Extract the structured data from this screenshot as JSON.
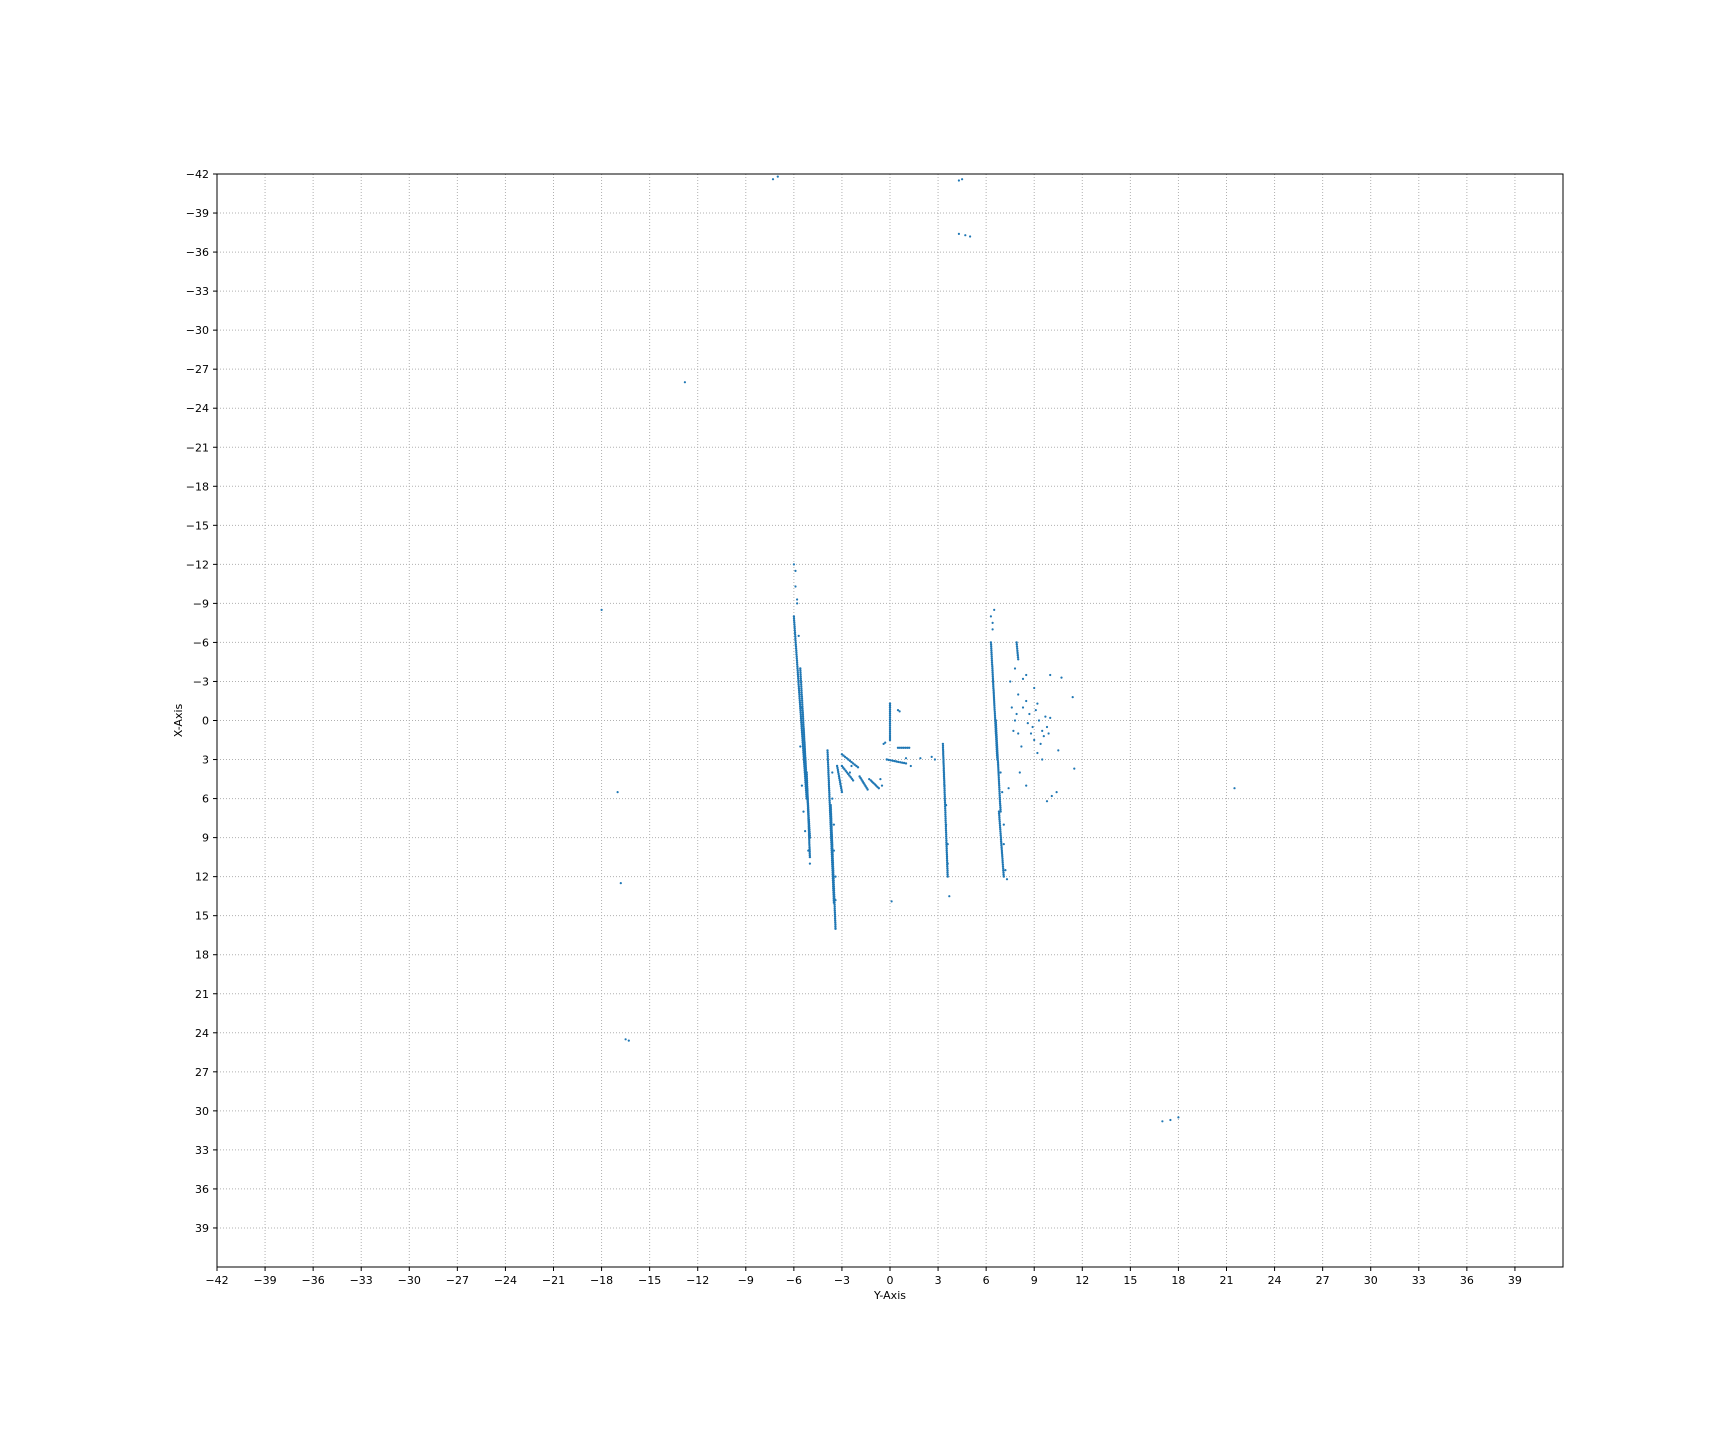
{
  "chart_data": {
    "type": "scatter",
    "title": "",
    "xlabel": "Y-Axis",
    "ylabel": "X-Axis",
    "xlim": [
      -42,
      42
    ],
    "ylim": [
      42,
      -42
    ],
    "y_inverted": true,
    "grid": true,
    "legend": "none",
    "x_ticks": [
      "−42",
      "−39",
      "−36",
      "−33",
      "−30",
      "−27",
      "−24",
      "−21",
      "−18",
      "−15",
      "−12",
      "−9",
      "−6",
      "−3",
      "0",
      "3",
      "6",
      "9",
      "12",
      "15",
      "18",
      "21",
      "24",
      "27",
      "30",
      "33",
      "36",
      "39"
    ],
    "y_ticks": [
      "−42",
      "−39",
      "−36",
      "−33",
      "−30",
      "−27",
      "−24",
      "−21",
      "−18",
      "−15",
      "−12",
      "−9",
      "−6",
      "−3",
      "0",
      "3",
      "6",
      "9",
      "12",
      "15",
      "18",
      "21",
      "24",
      "27",
      "30",
      "33",
      "36",
      "39"
    ],
    "marker_color": "#1f77b4",
    "grid_color": "#b0b0b0",
    "series": [
      {
        "segments": [
          [
            -6.0,
            -8.0,
            -5.2,
            6.0
          ],
          [
            -5.6,
            -4.0,
            -5.0,
            9.0
          ],
          [
            -5.2,
            4.0,
            -5.0,
            10.5
          ],
          [
            -3.9,
            2.3,
            -3.5,
            14.0
          ],
          [
            -3.7,
            6.5,
            -3.4,
            16.0
          ],
          [
            6.3,
            -6.0,
            6.7,
            3.0
          ],
          [
            6.6,
            0.0,
            6.9,
            7.0
          ],
          [
            6.8,
            7.0,
            7.1,
            12.0
          ],
          [
            3.3,
            1.8,
            3.6,
            12.0
          ],
          [
            0.0,
            -1.3,
            0.0,
            1.5
          ],
          [
            -0.2,
            3.0,
            1.0,
            3.3
          ],
          [
            0.5,
            2.1,
            1.2,
            2.1
          ],
          [
            -3.0,
            2.6,
            -2.0,
            3.6
          ],
          [
            -3.0,
            3.5,
            -2.3,
            4.6
          ],
          [
            -3.3,
            3.5,
            -3.0,
            5.5
          ],
          [
            -1.9,
            4.3,
            -1.4,
            5.3
          ],
          [
            -1.2,
            4.6,
            -0.7,
            5.2
          ],
          [
            7.9,
            -6.0,
            8.0,
            -4.7
          ]
        ],
        "points": [
          [
            -5.8,
            -9.3
          ],
          [
            -5.9,
            -10.3
          ],
          [
            -5.9,
            -11.5
          ],
          [
            -6.0,
            -12.0
          ],
          [
            -5.8,
            -9.0
          ],
          [
            -5.6,
            2.0
          ],
          [
            -5.5,
            5.0
          ],
          [
            -5.4,
            7.0
          ],
          [
            -5.3,
            8.5
          ],
          [
            -5.1,
            10.0
          ],
          [
            -5.0,
            11.0
          ],
          [
            -5.5,
            -1.0
          ],
          [
            -5.7,
            -6.5
          ],
          [
            -3.6,
            4.0
          ],
          [
            -3.6,
            6.0
          ],
          [
            -3.5,
            8.0
          ],
          [
            -3.5,
            10.0
          ],
          [
            -3.4,
            12.0
          ],
          [
            -3.4,
            13.8
          ],
          [
            -3.4,
            16.0
          ],
          [
            -2.6,
            3.0
          ],
          [
            -2.5,
            4.0
          ],
          [
            -2.4,
            3.5
          ],
          [
            -1.7,
            4.7
          ],
          [
            -1.3,
            4.5
          ],
          [
            -0.4,
            1.8
          ],
          [
            -0.3,
            1.7
          ],
          [
            0.5,
            -0.8
          ],
          [
            0.6,
            -0.7
          ],
          [
            0.1,
            13.9
          ],
          [
            -0.6,
            4.5
          ],
          [
            -0.5,
            5.0
          ],
          [
            2.6,
            2.8
          ],
          [
            2.8,
            3.0
          ],
          [
            1.9,
            2.9
          ],
          [
            1.0,
            2.9
          ],
          [
            1.3,
            3.5
          ],
          [
            3.4,
            5.0
          ],
          [
            3.5,
            6.5
          ],
          [
            3.5,
            8.0
          ],
          [
            3.6,
            9.5
          ],
          [
            3.6,
            11.0
          ],
          [
            3.7,
            13.5
          ],
          [
            6.4,
            -7.0
          ],
          [
            6.3,
            -8.0
          ],
          [
            6.5,
            -8.5
          ],
          [
            6.4,
            -7.5
          ],
          [
            6.9,
            4.0
          ],
          [
            7.0,
            5.5
          ],
          [
            7.1,
            8.0
          ],
          [
            7.1,
            9.5
          ],
          [
            7.2,
            11.5
          ],
          [
            7.3,
            12.2
          ],
          [
            7.5,
            -3.0
          ],
          [
            7.6,
            -1.0
          ],
          [
            7.8,
            0.0
          ],
          [
            8.0,
            1.0
          ],
          [
            8.2,
            2.0
          ],
          [
            7.7,
            0.8
          ],
          [
            7.9,
            -0.5
          ],
          [
            8.5,
            -1.5
          ],
          [
            8.7,
            -0.5
          ],
          [
            8.9,
            0.5
          ],
          [
            9.0,
            1.5
          ],
          [
            9.2,
            2.5
          ],
          [
            8.6,
            0.2
          ],
          [
            8.8,
            1.0
          ],
          [
            9.1,
            -0.8
          ],
          [
            9.3,
            0.0
          ],
          [
            9.5,
            0.8
          ],
          [
            9.7,
            -0.3
          ],
          [
            9.4,
            1.8
          ],
          [
            9.6,
            1.2
          ],
          [
            8.3,
            -1.0
          ],
          [
            9.8,
            0.5
          ],
          [
            10.0,
            -0.2
          ],
          [
            9.9,
            1.0
          ],
          [
            9.2,
            -1.3
          ],
          [
            8.0,
            -2.0
          ],
          [
            7.8,
            -4.0
          ],
          [
            8.3,
            -3.2
          ],
          [
            8.5,
            -3.5
          ],
          [
            9.5,
            3.0
          ],
          [
            10.5,
            2.3
          ],
          [
            11.4,
            -1.8
          ],
          [
            11.5,
            3.7
          ],
          [
            9.8,
            6.2
          ],
          [
            10.1,
            5.8
          ],
          [
            10.4,
            5.5
          ],
          [
            8.5,
            5.0
          ],
          [
            8.1,
            4.0
          ],
          [
            7.4,
            5.2
          ],
          [
            10.7,
            -3.3
          ],
          [
            10.0,
            -3.5
          ],
          [
            9.0,
            -2.5
          ],
          [
            -17.0,
            5.5
          ],
          [
            -18.0,
            -8.5
          ],
          [
            -16.8,
            12.5
          ],
          [
            -16.5,
            24.5
          ],
          [
            -16.3,
            24.6
          ],
          [
            -12.8,
            -26.0
          ],
          [
            -7.3,
            -41.6
          ],
          [
            -7.0,
            -41.8
          ],
          [
            4.3,
            -41.5
          ],
          [
            4.5,
            -41.6
          ],
          [
            4.3,
            -37.4
          ],
          [
            4.7,
            -37.3
          ],
          [
            5.0,
            -37.2
          ],
          [
            17.0,
            30.8
          ],
          [
            17.5,
            30.7
          ],
          [
            18.0,
            30.5
          ],
          [
            21.5,
            5.2
          ]
        ]
      }
    ]
  }
}
